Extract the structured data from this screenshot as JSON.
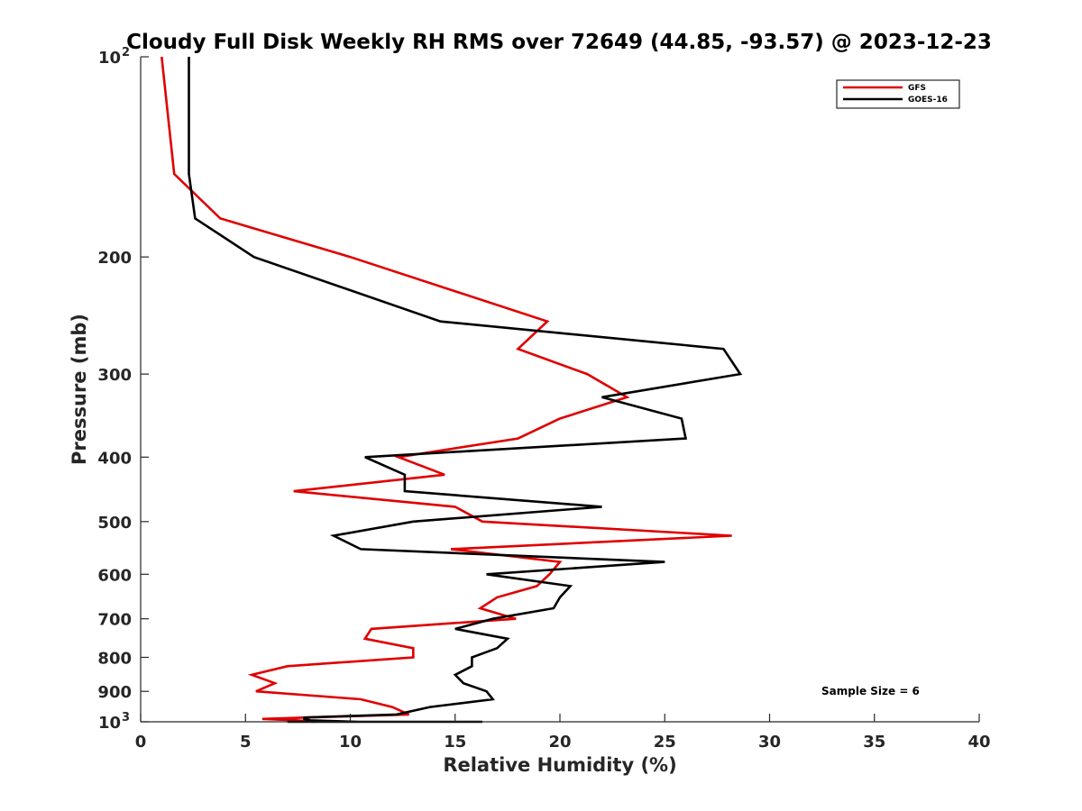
{
  "chart_data": {
    "type": "line",
    "title": "Cloudy Full Disk Weekly RH RMS over 72649 (44.85, -93.57) @ 2023-12-23",
    "xlabel": "Relative Humidity (%)",
    "ylabel": "Pressure (mb)",
    "xlim": [
      0,
      40
    ],
    "ylim": [
      100,
      1000
    ],
    "y_scale": "log",
    "y_reversed": true,
    "grid": false,
    "legend_position": "top-right",
    "x_ticks": [
      {
        "value": 0,
        "label": "0"
      },
      {
        "value": 5,
        "label": "5"
      },
      {
        "value": 10,
        "label": "10"
      },
      {
        "value": 15,
        "label": "15"
      },
      {
        "value": 20,
        "label": "20"
      },
      {
        "value": 25,
        "label": "25"
      },
      {
        "value": 30,
        "label": "30"
      },
      {
        "value": 35,
        "label": "35"
      },
      {
        "value": 40,
        "label": "40"
      }
    ],
    "y_ticks": [
      {
        "value": 100,
        "label": "10",
        "sup": "2"
      },
      {
        "value": 200,
        "label": "200",
        "sup": ""
      },
      {
        "value": 300,
        "label": "300",
        "sup": ""
      },
      {
        "value": 400,
        "label": "400",
        "sup": ""
      },
      {
        "value": 500,
        "label": "500",
        "sup": ""
      },
      {
        "value": 600,
        "label": "600",
        "sup": ""
      },
      {
        "value": 700,
        "label": "700",
        "sup": ""
      },
      {
        "value": 800,
        "label": "800",
        "sup": ""
      },
      {
        "value": 900,
        "label": "900",
        "sup": ""
      },
      {
        "value": 1000,
        "label": "10",
        "sup": "3"
      }
    ],
    "series": [
      {
        "name": "GFS",
        "color": "#e00000",
        "points": [
          [
            1.0,
            100
          ],
          [
            1.6,
            150
          ],
          [
            3.8,
            175
          ],
          [
            10.0,
            200
          ],
          [
            19.4,
            250
          ],
          [
            18.0,
            275
          ],
          [
            21.3,
            300
          ],
          [
            23.2,
            325
          ],
          [
            20.0,
            350
          ],
          [
            18.0,
            375
          ],
          [
            12.3,
            400
          ],
          [
            14.5,
            425
          ],
          [
            7.3,
            450
          ],
          [
            15.0,
            475
          ],
          [
            16.3,
            500
          ],
          [
            28.2,
            525
          ],
          [
            14.8,
            550
          ],
          [
            20.0,
            575
          ],
          [
            19.5,
            600
          ],
          [
            18.9,
            625
          ],
          [
            17.0,
            650
          ],
          [
            16.2,
            675
          ],
          [
            17.9,
            700
          ],
          [
            11.0,
            725
          ],
          [
            10.7,
            750
          ],
          [
            13.0,
            775
          ],
          [
            13.0,
            800
          ],
          [
            7.0,
            825
          ],
          [
            5.3,
            850
          ],
          [
            6.4,
            875
          ],
          [
            5.5,
            900
          ],
          [
            10.5,
            925
          ],
          [
            12.0,
            950
          ],
          [
            12.8,
            975
          ],
          [
            8.0,
            985
          ],
          [
            5.8,
            990
          ],
          [
            7.5,
            995
          ],
          [
            8.3,
            1000
          ]
        ]
      },
      {
        "name": "GOES-16",
        "color": "#000000",
        "points": [
          [
            2.3,
            100
          ],
          [
            2.3,
            150
          ],
          [
            2.6,
            175
          ],
          [
            5.4,
            200
          ],
          [
            14.3,
            250
          ],
          [
            27.8,
            275
          ],
          [
            28.6,
            300
          ],
          [
            22.0,
            325
          ],
          [
            25.8,
            350
          ],
          [
            26.0,
            375
          ],
          [
            10.7,
            400
          ],
          [
            12.6,
            425
          ],
          [
            12.6,
            450
          ],
          [
            22.0,
            475
          ],
          [
            13.0,
            500
          ],
          [
            9.2,
            525
          ],
          [
            10.5,
            550
          ],
          [
            25.0,
            575
          ],
          [
            16.5,
            600
          ],
          [
            20.5,
            625
          ],
          [
            20.0,
            650
          ],
          [
            19.7,
            675
          ],
          [
            16.8,
            700
          ],
          [
            15.0,
            725
          ],
          [
            17.5,
            750
          ],
          [
            17.0,
            775
          ],
          [
            15.8,
            800
          ],
          [
            15.8,
            825
          ],
          [
            15.0,
            850
          ],
          [
            15.4,
            875
          ],
          [
            16.5,
            900
          ],
          [
            16.8,
            925
          ],
          [
            13.8,
            950
          ],
          [
            12.2,
            975
          ],
          [
            7.8,
            985
          ],
          [
            7.8,
            990
          ],
          [
            8.1,
            995
          ],
          [
            10.4,
            1000
          ],
          [
            12.5,
            1000
          ],
          [
            13.7,
            1000
          ],
          [
            16.3,
            1000
          ],
          [
            7.0,
            1000
          ]
        ]
      }
    ],
    "annotations": [
      {
        "text": "Sample Size = 6"
      }
    ]
  }
}
